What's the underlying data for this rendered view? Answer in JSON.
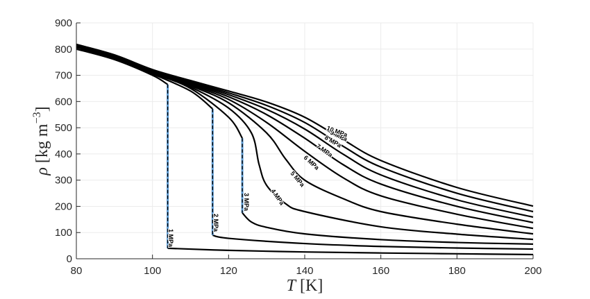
{
  "chart_data": {
    "type": "line",
    "title": "",
    "xlabel": "T [K]",
    "ylabel": "ρ [kg m^-3]",
    "xlim": [
      80,
      200
    ],
    "ylim": [
      0,
      900
    ],
    "xticks": [
      80,
      100,
      120,
      140,
      160,
      180,
      200
    ],
    "yticks": [
      0,
      100,
      200,
      300,
      400,
      500,
      600,
      700,
      800,
      900
    ],
    "grid": true,
    "legend": "inline curve labels",
    "colors": {
      "curve": "#000000",
      "phase_jump": "#5b9bd5",
      "axis": "#262626",
      "grid": "#ebebeb"
    },
    "series": [
      {
        "name": "1 MPa",
        "label": "1 MPa",
        "jump_T": 104.0,
        "liquid_at_jump": 665,
        "vapor_at_jump": 40,
        "points": [
          [
            80,
            800
          ],
          [
            90,
            760
          ],
          [
            100,
            700
          ],
          [
            104,
            665
          ],
          [
            104,
            40
          ],
          [
            120,
            32
          ],
          [
            140,
            26
          ],
          [
            160,
            22
          ],
          [
            180,
            19
          ],
          [
            200,
            16
          ]
        ]
      },
      {
        "name": "2 MPa",
        "label": "2 MPa",
        "jump_T": 115.8,
        "liquid_at_jump": 572,
        "vapor_at_jump": 90,
        "points": [
          [
            80,
            802
          ],
          [
            90,
            762
          ],
          [
            100,
            705
          ],
          [
            110,
            640
          ],
          [
            115.8,
            572
          ],
          [
            115.8,
            90
          ],
          [
            120,
            78
          ],
          [
            140,
            58
          ],
          [
            160,
            47
          ],
          [
            180,
            41
          ],
          [
            200,
            37
          ]
        ]
      },
      {
        "name": "3 MPa",
        "label": "3 MPa",
        "jump_T": 123.6,
        "liquid_at_jump": 460,
        "vapor_at_jump": 175,
        "points": [
          [
            80,
            804
          ],
          [
            90,
            764
          ],
          [
            100,
            708
          ],
          [
            110,
            650
          ],
          [
            120,
            540
          ],
          [
            123.6,
            460
          ],
          [
            123.6,
            175
          ],
          [
            126,
            140
          ],
          [
            130,
            120
          ],
          [
            140,
            95
          ],
          [
            160,
            73
          ],
          [
            180,
            62
          ],
          [
            200,
            56
          ]
        ]
      },
      {
        "name": "4 MPa",
        "label": "4 MPa",
        "points": [
          [
            80,
            806
          ],
          [
            90,
            766
          ],
          [
            100,
            710
          ],
          [
            110,
            655
          ],
          [
            120,
            575
          ],
          [
            126,
            480
          ],
          [
            128,
            360
          ],
          [
            130,
            280
          ],
          [
            135,
            210
          ],
          [
            140,
            180
          ],
          [
            160,
            122
          ],
          [
            180,
            94
          ],
          [
            200,
            74
          ]
        ]
      },
      {
        "name": "5 MPa",
        "label": "5 MPa",
        "points": [
          [
            80,
            808
          ],
          [
            90,
            768
          ],
          [
            100,
            712
          ],
          [
            110,
            660
          ],
          [
            120,
            595
          ],
          [
            130,
            480
          ],
          [
            135,
            380
          ],
          [
            140,
            300
          ],
          [
            150,
            230
          ],
          [
            160,
            180
          ],
          [
            180,
            132
          ],
          [
            200,
            95
          ]
        ]
      },
      {
        "name": "6 MPa",
        "label": "6 MPa",
        "points": [
          [
            80,
            810
          ],
          [
            90,
            770
          ],
          [
            100,
            714
          ],
          [
            110,
            664
          ],
          [
            120,
            608
          ],
          [
            130,
            520
          ],
          [
            140,
            410
          ],
          [
            150,
            310
          ],
          [
            160,
            240
          ],
          [
            180,
            170
          ],
          [
            200,
            116
          ]
        ]
      },
      {
        "name": "7 MPa",
        "label": "7 MPa",
        "points": [
          [
            80,
            812
          ],
          [
            90,
            772
          ],
          [
            100,
            716
          ],
          [
            110,
            668
          ],
          [
            120,
            618
          ],
          [
            130,
            550
          ],
          [
            140,
            460
          ],
          [
            150,
            360
          ],
          [
            160,
            285
          ],
          [
            180,
            200
          ],
          [
            200,
            138
          ]
        ]
      },
      {
        "name": "8 MPa",
        "label": "8 MPa",
        "points": [
          [
            80,
            814
          ],
          [
            90,
            774
          ],
          [
            100,
            718
          ],
          [
            110,
            672
          ],
          [
            120,
            626
          ],
          [
            130,
            570
          ],
          [
            140,
            495
          ],
          [
            150,
            400
          ],
          [
            160,
            320
          ],
          [
            180,
            225
          ],
          [
            200,
            159
          ]
        ]
      },
      {
        "name": "9 MPa",
        "label": "9 MPa",
        "points": [
          [
            80,
            816
          ],
          [
            90,
            776
          ],
          [
            100,
            720
          ],
          [
            110,
            676
          ],
          [
            120,
            633
          ],
          [
            130,
            585
          ],
          [
            140,
            520
          ],
          [
            150,
            430
          ],
          [
            160,
            350
          ],
          [
            180,
            250
          ],
          [
            200,
            180
          ]
        ]
      },
      {
        "name": "10 MPa",
        "label": "10 MPa",
        "points": [
          [
            80,
            818
          ],
          [
            90,
            778
          ],
          [
            100,
            722
          ],
          [
            110,
            680
          ],
          [
            120,
            640
          ],
          [
            130,
            598
          ],
          [
            140,
            540
          ],
          [
            150,
            455
          ],
          [
            160,
            375
          ],
          [
            180,
            272
          ],
          [
            200,
            201
          ]
        ]
      }
    ]
  },
  "axes": {
    "xlabel_italic": "T",
    "xlabel_unit": "[K]",
    "ylabel_symbol": "ρ",
    "ylabel_unit": "[kg m",
    "ylabel_exp": "−3",
    "ylabel_close": "]"
  }
}
